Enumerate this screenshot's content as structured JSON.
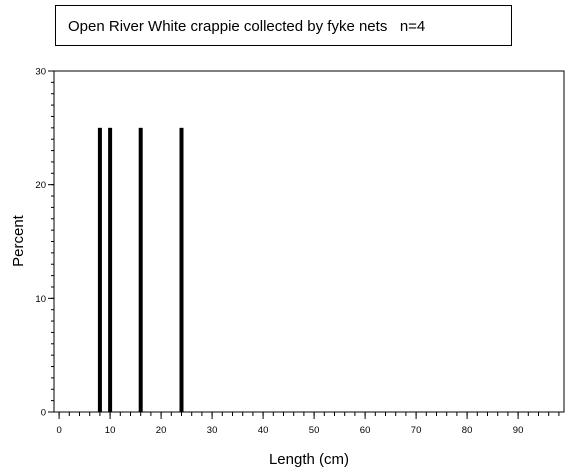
{
  "chart_data": {
    "type": "bar",
    "title": "Open River White crappie collected by fyke nets   n=4",
    "xlabel": "Length (cm)",
    "ylabel": "Percent",
    "x": [
      8,
      10,
      16,
      24
    ],
    "values": [
      25,
      25,
      25,
      25
    ],
    "xlim": [
      -1,
      99
    ],
    "ylim": [
      0,
      30
    ],
    "xticks": [
      0,
      10,
      20,
      30,
      40,
      50,
      60,
      70,
      80,
      90
    ],
    "yticks": [
      0,
      10,
      20,
      30
    ],
    "minor_x_step": 2,
    "minor_y_step": 1,
    "bar_color": "#000000",
    "grid": false,
    "legend": "none"
  }
}
